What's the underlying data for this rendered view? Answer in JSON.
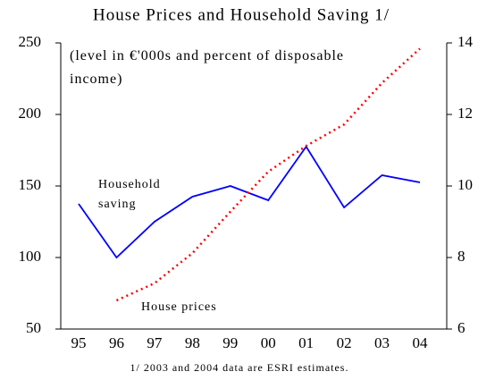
{
  "chart_data": {
    "type": "line",
    "title": "House Prices and Household Saving 1/",
    "subtitle": "(level in €'000s and percent of disposable income)",
    "footnote": "1/ 2003 and 2004 data are ESRI estimates.",
    "categories": [
      "95",
      "96",
      "97",
      "98",
      "99",
      "00",
      "01",
      "02",
      "03",
      "04"
    ],
    "series": [
      {
        "name": "Household saving",
        "color": "#0000ff",
        "axis": "y2",
        "dashed": false,
        "values": [
          9.5,
          8.0,
          9.0,
          9.7,
          10.0,
          9.6,
          11.1,
          9.4,
          10.3,
          10.1
        ]
      },
      {
        "name": "House prices",
        "color": "#ff0000",
        "dashed": true,
        "values": [
          null,
          70,
          82,
          103,
          132,
          160,
          178,
          193,
          222,
          246
        ]
      }
    ],
    "ylim": [
      50,
      250
    ],
    "yticks": [
      50,
      100,
      150,
      200,
      250
    ],
    "y2lim": [
      6,
      14
    ],
    "y2ticks": [
      6,
      8,
      10,
      12,
      14
    ],
    "grid": false
  }
}
